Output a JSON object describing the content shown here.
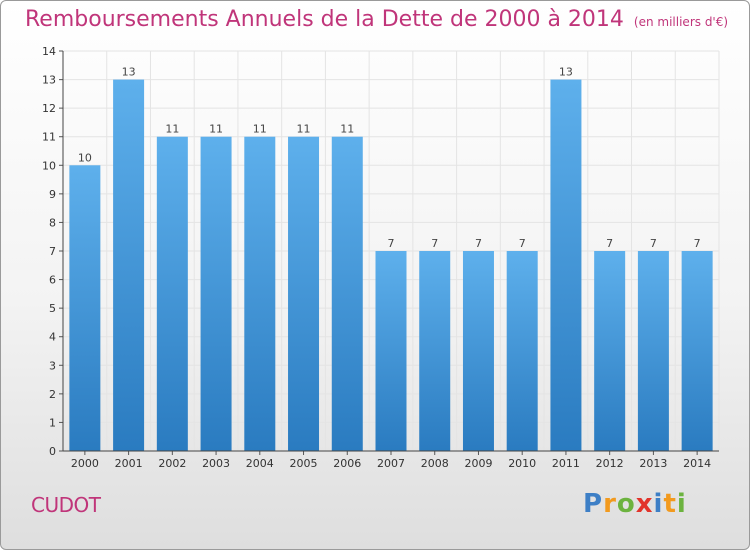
{
  "chart_data": {
    "type": "bar",
    "title": "Remboursements Annuels de la Dette de 2000 à 2014",
    "unit_note": "(en milliers d'€)",
    "categories": [
      "2000",
      "2001",
      "2002",
      "2003",
      "2004",
      "2005",
      "2006",
      "2007",
      "2008",
      "2009",
      "2010",
      "2011",
      "2012",
      "2013",
      "2014"
    ],
    "values": [
      10,
      13,
      11,
      11,
      11,
      11,
      11,
      7,
      7,
      7,
      7,
      13,
      7,
      7,
      7
    ],
    "ylim": [
      0,
      14
    ],
    "yticks": [
      0,
      1,
      2,
      3,
      4,
      5,
      6,
      7,
      8,
      9,
      10,
      11,
      12,
      13,
      14
    ],
    "ytick_labels": [
      "0",
      "1",
      "2",
      "3",
      "4",
      "5",
      "6",
      "7",
      "8",
      "9",
      "10",
      "11",
      "12",
      "13",
      "14"
    ],
    "grid": true,
    "bar_color": "#4a9ee0",
    "xlabel": "",
    "ylabel": ""
  },
  "commune": "CUDOT",
  "logo": {
    "letters": [
      "P",
      "r",
      "o",
      "x",
      "i",
      "t",
      "i"
    ],
    "colors": [
      "#3d7fc6",
      "#f29a1e",
      "#6cb33f",
      "#e2342b",
      "#3d7fc6",
      "#f29a1e",
      "#6cb33f"
    ]
  },
  "colors": {
    "title": "#c0357a",
    "commune": "#c0357a"
  }
}
